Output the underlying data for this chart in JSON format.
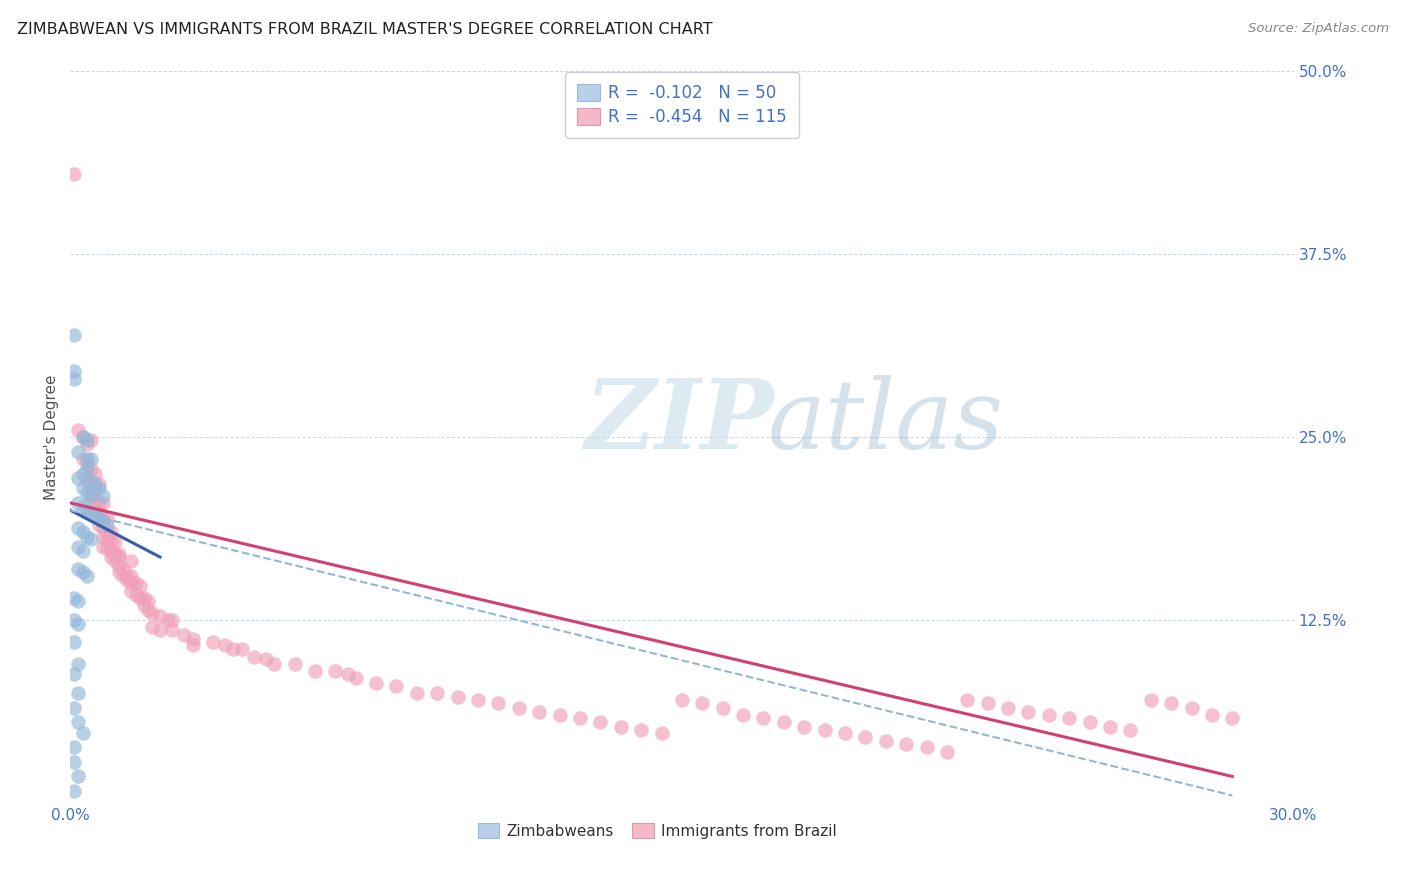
{
  "title": "ZIMBABWEAN VS IMMIGRANTS FROM BRAZIL MASTER'S DEGREE CORRELATION CHART",
  "source": "Source: ZipAtlas.com",
  "ylabel": "Master's Degree",
  "xlim": [
    0.0,
    0.3
  ],
  "ylim": [
    0.0,
    0.5
  ],
  "zim_color": "#92b8d8",
  "bra_color": "#f0a0b8",
  "zim_line_color": "#3a5ca8",
  "bra_line_color": "#d04070",
  "dashed_line_color": "#90b8d8",
  "background_color": "#ffffff",
  "grid_color": "#c8d8e8",
  "zim_scatter": [
    [
      0.001,
      0.295
    ],
    [
      0.001,
      0.29
    ],
    [
      0.001,
      0.32
    ],
    [
      0.003,
      0.25
    ],
    [
      0.004,
      0.248
    ],
    [
      0.002,
      0.24
    ],
    [
      0.004,
      0.235
    ],
    [
      0.005,
      0.235
    ],
    [
      0.003,
      0.225
    ],
    [
      0.004,
      0.228
    ],
    [
      0.002,
      0.222
    ],
    [
      0.005,
      0.22
    ],
    [
      0.003,
      0.215
    ],
    [
      0.006,
      0.218
    ],
    [
      0.004,
      0.212
    ],
    [
      0.007,
      0.215
    ],
    [
      0.005,
      0.21
    ],
    [
      0.008,
      0.21
    ],
    [
      0.002,
      0.205
    ],
    [
      0.003,
      0.202
    ],
    [
      0.004,
      0.2
    ],
    [
      0.005,
      0.198
    ],
    [
      0.006,
      0.196
    ],
    [
      0.007,
      0.195
    ],
    [
      0.008,
      0.192
    ],
    [
      0.009,
      0.19
    ],
    [
      0.002,
      0.188
    ],
    [
      0.003,
      0.185
    ],
    [
      0.004,
      0.182
    ],
    [
      0.005,
      0.18
    ],
    [
      0.002,
      0.175
    ],
    [
      0.003,
      0.172
    ],
    [
      0.002,
      0.16
    ],
    [
      0.003,
      0.158
    ],
    [
      0.004,
      0.155
    ],
    [
      0.001,
      0.14
    ],
    [
      0.002,
      0.138
    ],
    [
      0.001,
      0.125
    ],
    [
      0.002,
      0.122
    ],
    [
      0.001,
      0.11
    ],
    [
      0.002,
      0.095
    ],
    [
      0.001,
      0.088
    ],
    [
      0.002,
      0.075
    ],
    [
      0.001,
      0.065
    ],
    [
      0.002,
      0.055
    ],
    [
      0.003,
      0.048
    ],
    [
      0.001,
      0.038
    ],
    [
      0.001,
      0.028
    ],
    [
      0.002,
      0.018
    ],
    [
      0.001,
      0.008
    ]
  ],
  "bra_scatter": [
    [
      0.001,
      0.43
    ],
    [
      0.002,
      0.255
    ],
    [
      0.003,
      0.25
    ],
    [
      0.004,
      0.245
    ],
    [
      0.005,
      0.248
    ],
    [
      0.003,
      0.235
    ],
    [
      0.004,
      0.232
    ],
    [
      0.005,
      0.228
    ],
    [
      0.006,
      0.225
    ],
    [
      0.004,
      0.22
    ],
    [
      0.005,
      0.218
    ],
    [
      0.006,
      0.215
    ],
    [
      0.007,
      0.218
    ],
    [
      0.005,
      0.21
    ],
    [
      0.006,
      0.208
    ],
    [
      0.007,
      0.205
    ],
    [
      0.008,
      0.205
    ],
    [
      0.006,
      0.2
    ],
    [
      0.007,
      0.198
    ],
    [
      0.008,
      0.195
    ],
    [
      0.009,
      0.195
    ],
    [
      0.007,
      0.19
    ],
    [
      0.008,
      0.188
    ],
    [
      0.009,
      0.185
    ],
    [
      0.01,
      0.185
    ],
    [
      0.008,
      0.182
    ],
    [
      0.009,
      0.18
    ],
    [
      0.01,
      0.178
    ],
    [
      0.011,
      0.178
    ],
    [
      0.009,
      0.175
    ],
    [
      0.01,
      0.172
    ],
    [
      0.011,
      0.17
    ],
    [
      0.012,
      0.17
    ],
    [
      0.01,
      0.168
    ],
    [
      0.011,
      0.165
    ],
    [
      0.012,
      0.162
    ],
    [
      0.013,
      0.16
    ],
    [
      0.012,
      0.158
    ],
    [
      0.013,
      0.155
    ],
    [
      0.014,
      0.155
    ],
    [
      0.015,
      0.155
    ],
    [
      0.014,
      0.152
    ],
    [
      0.015,
      0.15
    ],
    [
      0.016,
      0.15
    ],
    [
      0.017,
      0.148
    ],
    [
      0.015,
      0.145
    ],
    [
      0.016,
      0.142
    ],
    [
      0.017,
      0.14
    ],
    [
      0.018,
      0.14
    ],
    [
      0.019,
      0.138
    ],
    [
      0.018,
      0.135
    ],
    [
      0.019,
      0.132
    ],
    [
      0.02,
      0.13
    ],
    [
      0.022,
      0.128
    ],
    [
      0.024,
      0.125
    ],
    [
      0.025,
      0.125
    ],
    [
      0.02,
      0.12
    ],
    [
      0.022,
      0.118
    ],
    [
      0.025,
      0.118
    ],
    [
      0.028,
      0.115
    ],
    [
      0.03,
      0.112
    ],
    [
      0.03,
      0.108
    ],
    [
      0.035,
      0.11
    ],
    [
      0.038,
      0.108
    ],
    [
      0.04,
      0.105
    ],
    [
      0.042,
      0.105
    ],
    [
      0.045,
      0.1
    ],
    [
      0.048,
      0.098
    ],
    [
      0.05,
      0.095
    ],
    [
      0.055,
      0.095
    ],
    [
      0.06,
      0.09
    ],
    [
      0.065,
      0.09
    ],
    [
      0.068,
      0.088
    ],
    [
      0.07,
      0.085
    ],
    [
      0.075,
      0.082
    ],
    [
      0.08,
      0.08
    ],
    [
      0.085,
      0.075
    ],
    [
      0.09,
      0.075
    ],
    [
      0.095,
      0.072
    ],
    [
      0.1,
      0.07
    ],
    [
      0.105,
      0.068
    ],
    [
      0.11,
      0.065
    ],
    [
      0.115,
      0.062
    ],
    [
      0.12,
      0.06
    ],
    [
      0.125,
      0.058
    ],
    [
      0.13,
      0.055
    ],
    [
      0.135,
      0.052
    ],
    [
      0.14,
      0.05
    ],
    [
      0.145,
      0.048
    ],
    [
      0.15,
      0.07
    ],
    [
      0.155,
      0.068
    ],
    [
      0.16,
      0.065
    ],
    [
      0.165,
      0.06
    ],
    [
      0.17,
      0.058
    ],
    [
      0.175,
      0.055
    ],
    [
      0.18,
      0.052
    ],
    [
      0.185,
      0.05
    ],
    [
      0.19,
      0.048
    ],
    [
      0.195,
      0.045
    ],
    [
      0.2,
      0.042
    ],
    [
      0.205,
      0.04
    ],
    [
      0.21,
      0.038
    ],
    [
      0.215,
      0.035
    ],
    [
      0.22,
      0.07
    ],
    [
      0.225,
      0.068
    ],
    [
      0.23,
      0.065
    ],
    [
      0.235,
      0.062
    ],
    [
      0.24,
      0.06
    ],
    [
      0.245,
      0.058
    ],
    [
      0.25,
      0.055
    ],
    [
      0.255,
      0.052
    ],
    [
      0.26,
      0.05
    ],
    [
      0.265,
      0.07
    ],
    [
      0.27,
      0.068
    ],
    [
      0.275,
      0.065
    ],
    [
      0.28,
      0.06
    ],
    [
      0.285,
      0.058
    ],
    [
      0.008,
      0.175
    ],
    [
      0.01,
      0.172
    ],
    [
      0.012,
      0.168
    ],
    [
      0.015,
      0.165
    ]
  ],
  "zim_line": [
    [
      0.0,
      0.2
    ],
    [
      0.022,
      0.168
    ]
  ],
  "bra_line": [
    [
      0.0,
      0.205
    ],
    [
      0.285,
      0.018
    ]
  ],
  "dashed_line": [
    [
      0.0,
      0.2
    ],
    [
      0.285,
      0.005
    ]
  ]
}
